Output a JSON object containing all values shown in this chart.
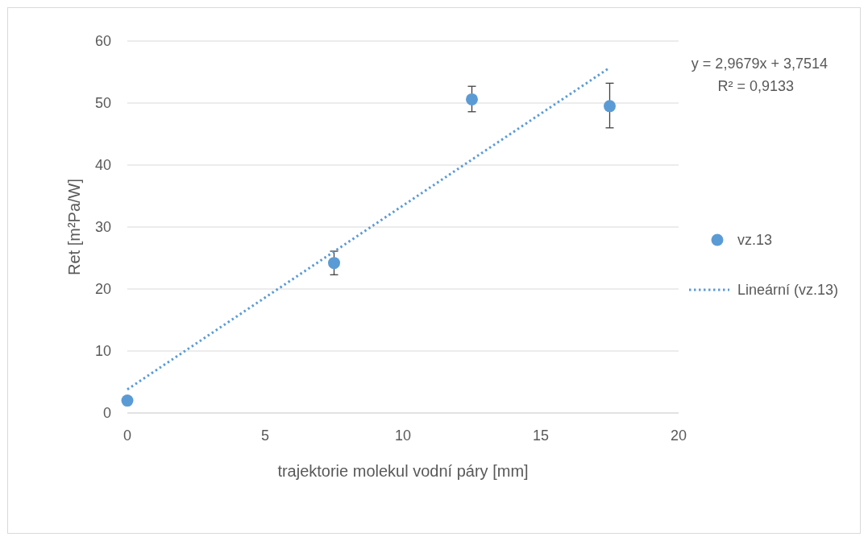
{
  "chart_data": {
    "type": "scatter",
    "xlabel": "trajektorie molekul vodní páry [mm]",
    "ylabel": "Ret [m²Pa/W]",
    "xlim": [
      0,
      20
    ],
    "xticks": [
      0,
      5,
      10,
      15,
      20
    ],
    "ylim": [
      0,
      60
    ],
    "yticks": [
      0,
      10,
      20,
      30,
      40,
      50,
      60
    ],
    "grid": "y",
    "legend": "right",
    "series": [
      {
        "name": "vz.13",
        "color": "#5b9bd5",
        "marker": "circle",
        "x": [
          0,
          7.5,
          12.5,
          17.5
        ],
        "values": [
          2,
          24.2,
          50.6,
          49.5
        ],
        "errors": [
          null,
          [
            22.3,
            26.1
          ],
          [
            48.6,
            52.7
          ],
          [
            46,
            53.2
          ]
        ]
      },
      {
        "name": "Lineární (vz.13)",
        "type": "line",
        "color": "#5b9bd5",
        "marker": "none",
        "line_style": "dotted",
        "x": [
          0,
          17.5
        ],
        "values": [
          3.8,
          55.7
        ]
      }
    ],
    "annotations": [
      "y = 2,9679x + 3,7514",
      "R² = 0,9133"
    ]
  }
}
